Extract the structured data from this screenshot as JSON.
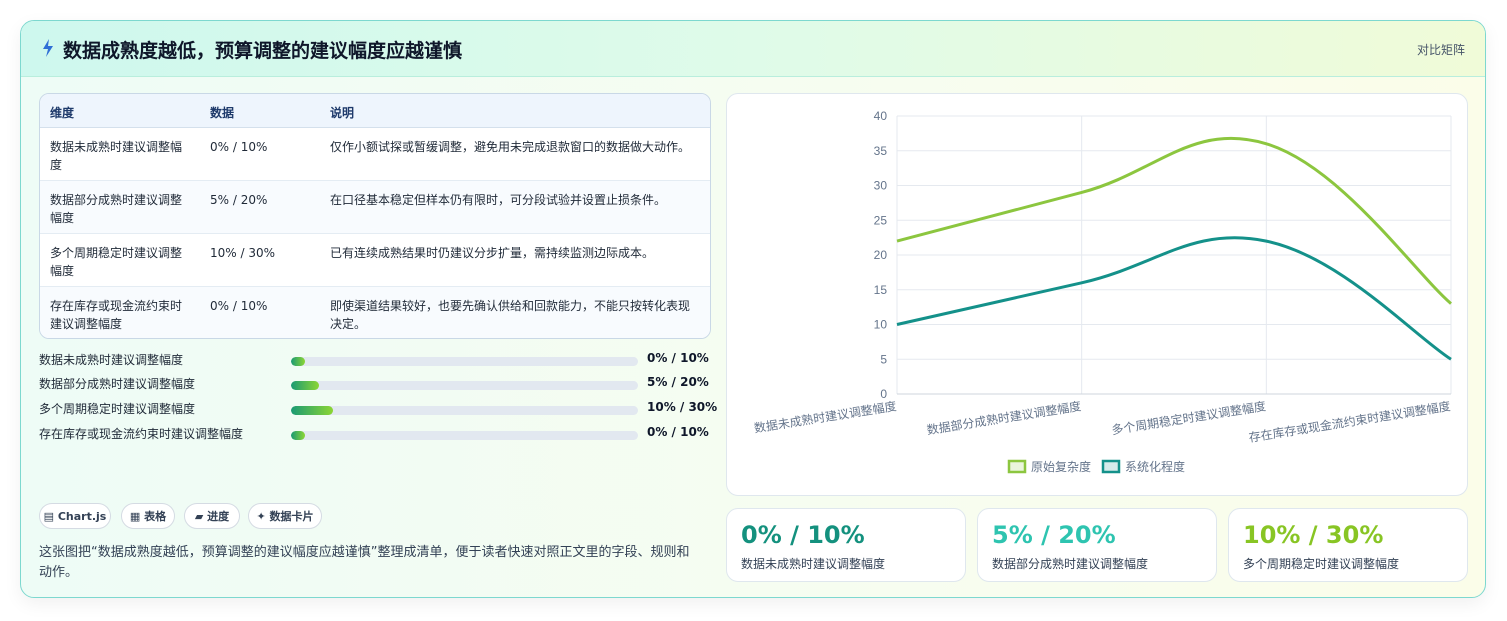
{
  "header": {
    "title": "数据成熟度越低，预算调整的建议幅度应越谨慎",
    "tag": "对比矩阵"
  },
  "table": {
    "columns": [
      "维度",
      "数据",
      "说明"
    ],
    "rows": [
      {
        "dimension": "数据未成熟时建议调整幅度",
        "data": "0% / 10%",
        "note": "仅作小额试探或暂缓调整，避免用未完成退款窗口的数据做大动作。"
      },
      {
        "dimension": "数据部分成熟时建议调整幅度",
        "data": "5% / 20%",
        "note": "在口径基本稳定但样本仍有限时，可分段试验并设置止损条件。"
      },
      {
        "dimension": "多个周期稳定时建议调整幅度",
        "data": "10% / 30%",
        "note": "已有连续成熟结果时仍建议分步扩量，需持续监测边际成本。"
      },
      {
        "dimension": "存在库存或现金流约束时建议调整幅度",
        "data": "0% / 10%",
        "note": "即使渠道结果较好，也要先确认供给和回款能力，不能只按转化表现决定。"
      }
    ]
  },
  "progress": [
    {
      "label": "数据未成熟时建议调整幅度",
      "value": "0% / 10%",
      "fill": 0.04
    },
    {
      "label": "数据部分成熟时建议调整幅度",
      "value": "5% / 20%",
      "fill": 0.08
    },
    {
      "label": "多个周期稳定时建议调整幅度",
      "value": "10% / 30%",
      "fill": 0.12
    },
    {
      "label": "存在库存或现金流约束时建议调整幅度",
      "value": "0% / 10%",
      "fill": 0.04
    }
  ],
  "chips": [
    "▤ Chart.js",
    "▦ 表格",
    "▰ 进度",
    "✦ 数据卡片"
  ],
  "description": "这张图把“数据成熟度越低，预算调整的建议幅度应越谨慎”整理成清单，便于读者快速对照正文里的字段、规则和动作。",
  "kpis": [
    {
      "value": "0% / 10%",
      "label": "数据未成熟时建议调整幅度",
      "color": "#14917e"
    },
    {
      "value": "5% / 20%",
      "label": "数据部分成熟时建议调整幅度",
      "color": "#2ec4b0"
    },
    {
      "value": "10% / 30%",
      "label": "多个周期稳定时建议调整幅度",
      "color": "#88c524"
    }
  ],
  "chart_data": {
    "type": "line",
    "categories": [
      "数据未成熟时建议调整幅度",
      "数据部分成熟时建议调整幅度",
      "多个周期稳定时建议调整幅度",
      "存在库存或现金流约束时建议调整幅度"
    ],
    "series": [
      {
        "name": "原始复杂度",
        "values": [
          22,
          29,
          36,
          13
        ],
        "color": "#8cc63f"
      },
      {
        "name": "系统化程度",
        "values": [
          10,
          16,
          22,
          5
        ],
        "color": "#14918a"
      }
    ],
    "ylim": [
      0,
      40
    ],
    "yticks": [
      0,
      5,
      10,
      15,
      20,
      25,
      30,
      35,
      40
    ],
    "grid": true,
    "legend": "bottom"
  }
}
